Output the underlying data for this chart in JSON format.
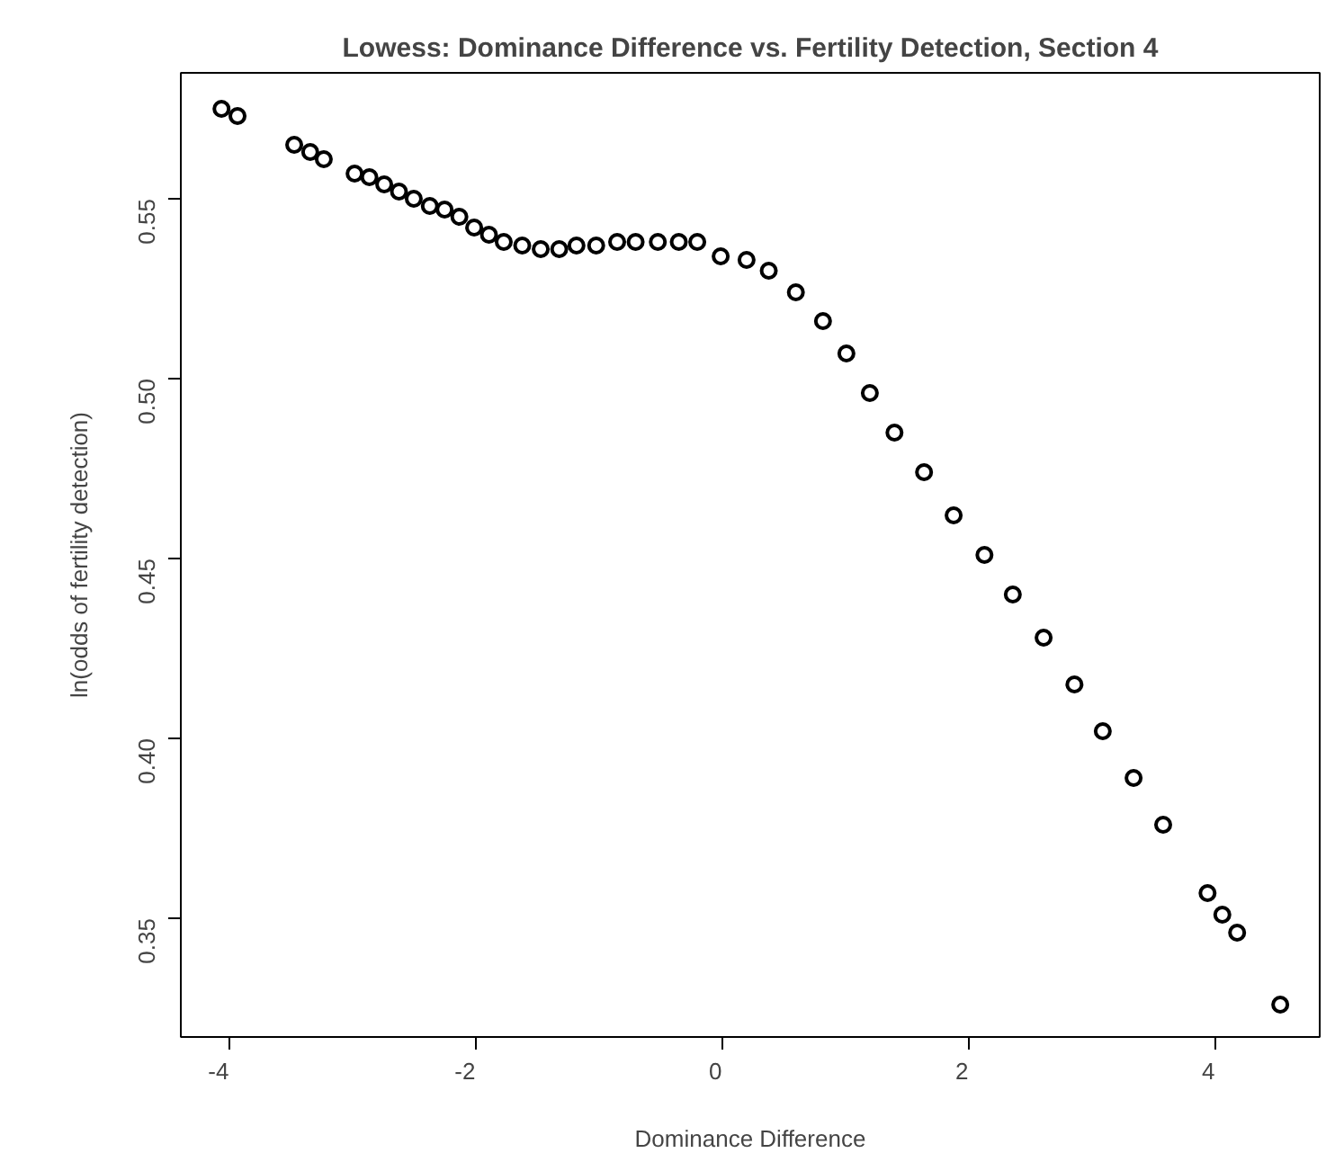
{
  "chart_data": {
    "type": "scatter",
    "title": "Lowess: Dominance Difference vs. Fertility Detection, Section 4",
    "xlabel": "Dominance Difference",
    "ylabel": "ln(odds of fertility detection)",
    "marker": "circle",
    "grid": false,
    "x": [
      -4.06,
      -3.93,
      -3.47,
      -3.34,
      -3.23,
      -2.98,
      -2.86,
      -2.74,
      -2.62,
      -2.5,
      -2.37,
      -2.25,
      -2.13,
      -2.01,
      -1.89,
      -1.77,
      -1.62,
      -1.47,
      -1.32,
      -1.18,
      -1.02,
      -0.85,
      -0.7,
      -0.52,
      -0.35,
      -0.2,
      -0.01,
      0.2,
      0.38,
      0.6,
      0.82,
      1.01,
      1.2,
      1.4,
      1.64,
      1.88,
      2.13,
      2.36,
      2.61,
      2.86,
      3.09,
      3.34,
      3.58,
      3.94,
      4.06,
      4.18,
      4.53
    ],
    "values": [
      0.575,
      0.573,
      0.565,
      0.563,
      0.561,
      0.557,
      0.556,
      0.554,
      0.552,
      0.55,
      0.548,
      0.547,
      0.545,
      0.542,
      0.54,
      0.538,
      0.537,
      0.536,
      0.536,
      0.537,
      0.537,
      0.538,
      0.538,
      0.538,
      0.538,
      0.538,
      0.534,
      0.533,
      0.53,
      0.524,
      0.516,
      0.507,
      0.496,
      0.485,
      0.474,
      0.462,
      0.451,
      0.44,
      0.428,
      0.415,
      0.402,
      0.389,
      0.376,
      0.357,
      0.351,
      0.346,
      0.326
    ],
    "color": "#000000",
    "xlim": [
      -4.39,
      4.85
    ],
    "ylim": [
      0.317,
      0.585
    ],
    "xticks": [
      -4,
      -2,
      0,
      2,
      4
    ],
    "yticks": [
      {
        "value": 0.35,
        "label": "0.35"
      },
      {
        "value": 0.4,
        "label": "0.40"
      },
      {
        "value": 0.45,
        "label": "0.45"
      },
      {
        "value": 0.5,
        "label": "0.50"
      },
      {
        "value": 0.55,
        "label": "0.55"
      }
    ]
  }
}
